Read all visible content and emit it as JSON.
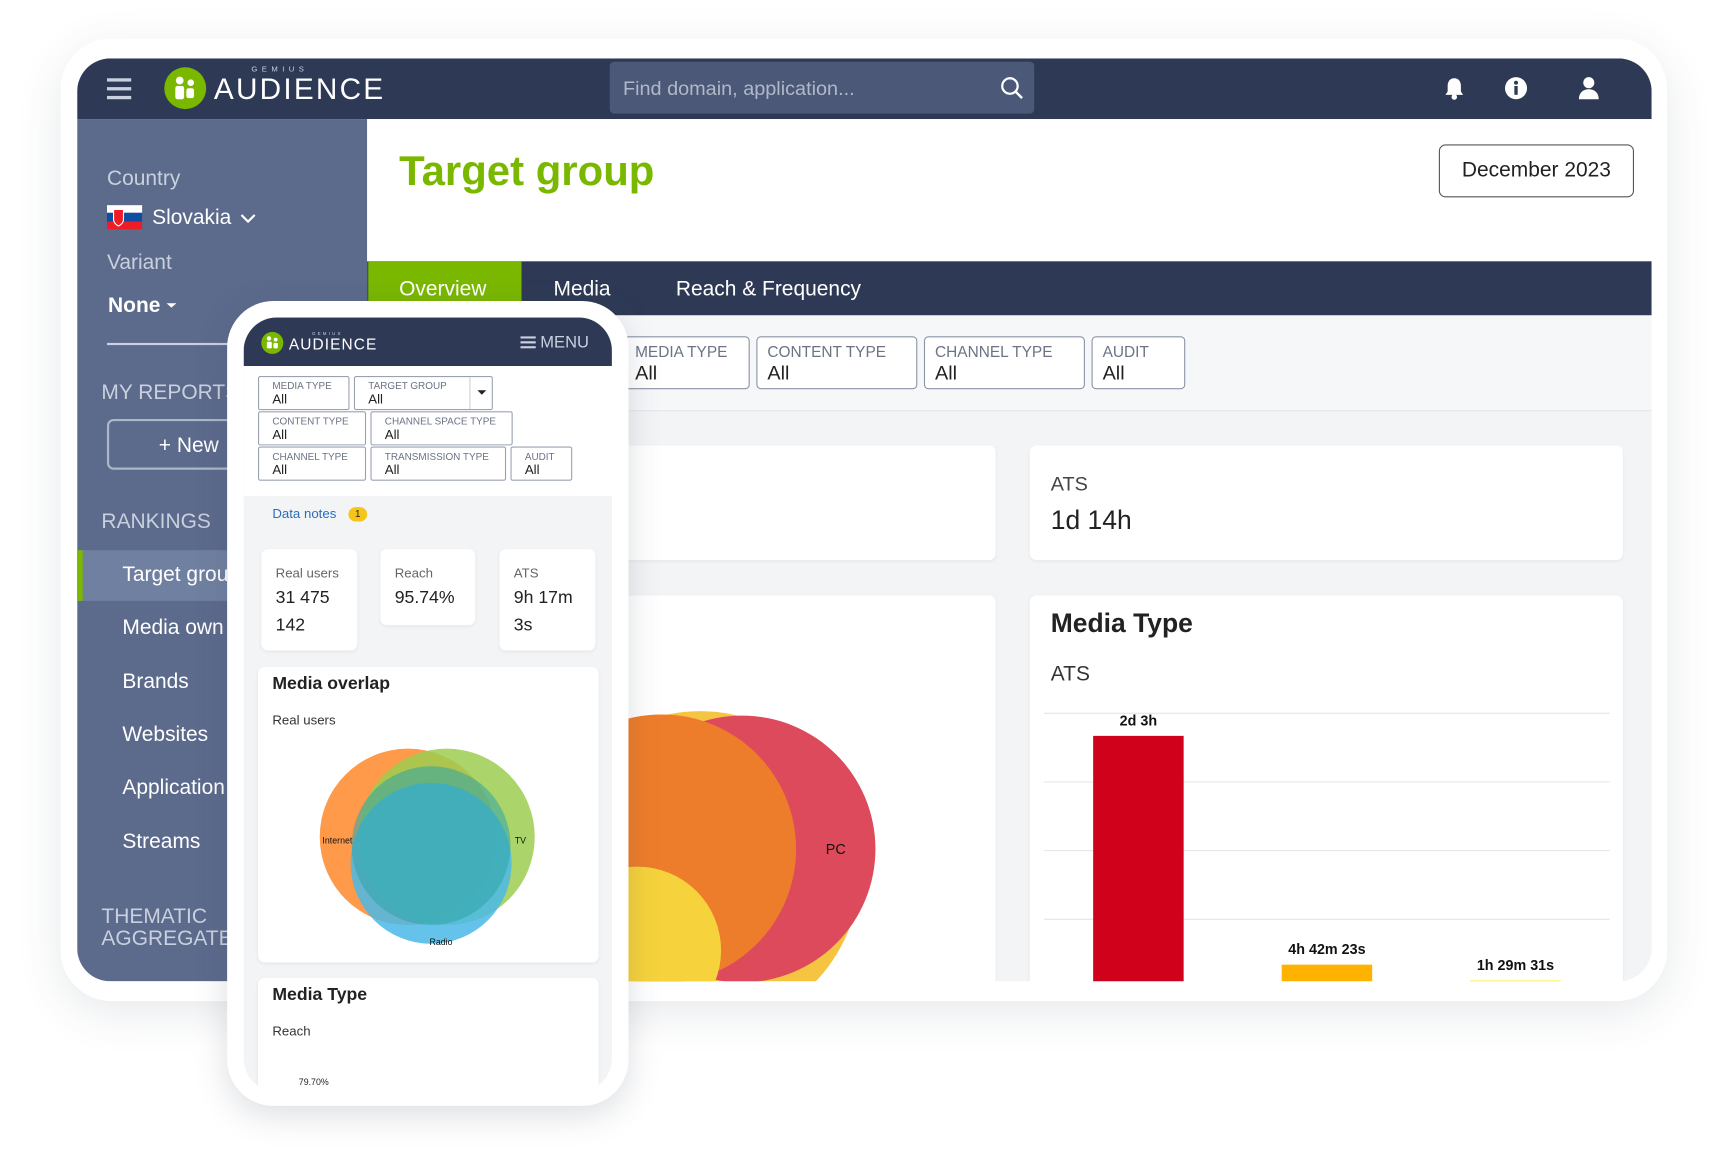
{
  "header": {
    "logo_sub": "GEMIUS",
    "logo": "AUDIENCE",
    "search_placeholder": "Find domain, application..."
  },
  "sidebar": {
    "country_label": "Country",
    "country": "Slovakia",
    "variant_label": "Variant",
    "variant": "None",
    "my_reports": "MY REPORTS",
    "new_button": "+ New",
    "rankings": "RANKINGS",
    "items": [
      "Target grou",
      "Media own",
      "Brands",
      "Websites",
      "Application",
      "Streams"
    ],
    "thematic": [
      "THEMATIC",
      "AGGREGATE"
    ]
  },
  "page": {
    "title": "Target group",
    "date": "December 2023",
    "tabs": [
      "Overview",
      "Media",
      "Reach & Frequency"
    ],
    "filters": [
      {
        "label": "MEDIA TYPE",
        "value": "All"
      },
      {
        "label": "CONTENT TYPE",
        "value": "All"
      },
      {
        "label": "CHANNEL TYPE",
        "value": "All"
      },
      {
        "label": "AUDIT",
        "value": "All"
      }
    ],
    "ats_card": {
      "label": "ATS",
      "value": "1d 14h"
    },
    "venn_label": "PC"
  },
  "chart_data": {
    "type": "bar",
    "title": "Media Type",
    "subtitle": "ATS",
    "values": [
      183600,
      16943,
      5371
    ],
    "value_labels": [
      "2d 3h",
      "4h 42m 23s",
      "1h 29m 31s"
    ],
    "colors": [
      "#d0021b",
      "#ffb300",
      "#f8e71c"
    ],
    "ylim": [
      0,
      200000
    ],
    "yticks": [
      50000,
      100000,
      150000,
      200000
    ],
    "grid": true
  },
  "mobile": {
    "logo_sub": "GEMIUS",
    "logo": "AUDIENCE",
    "menu": "MENU",
    "filters": [
      {
        "label": "MEDIA TYPE",
        "value": "All"
      },
      {
        "label": "TARGET GROUP",
        "value": "All"
      },
      {
        "label": "CONTENT TYPE",
        "value": "All"
      },
      {
        "label": "CHANNEL SPACE TYPE",
        "value": "All"
      },
      {
        "label": "CHANNEL TYPE",
        "value": "All"
      },
      {
        "label": "TRANSMISSION TYPE",
        "value": "All"
      },
      {
        "label": "AUDIT",
        "value": "All"
      }
    ],
    "data_notes": "Data notes",
    "data_notes_count": "1",
    "stats": [
      {
        "label": "Real users",
        "value": "31 475 142"
      },
      {
        "label": "Reach",
        "value": "95.74%"
      },
      {
        "label": "ATS",
        "value": "9h 17m 3s"
      }
    ],
    "overlap": {
      "title": "Media overlap",
      "subtitle": "Real users",
      "labels": [
        "Internet",
        "TV",
        "Radio"
      ]
    },
    "media_type": {
      "title": "Media Type",
      "subtitle": "Reach",
      "value_label": "79.70%"
    }
  }
}
